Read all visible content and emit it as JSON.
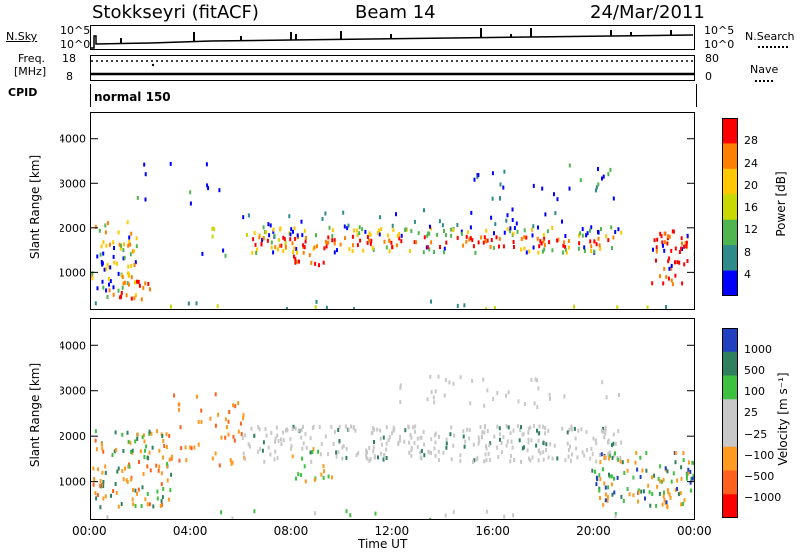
{
  "header": {
    "station": "Stokkseyri (fitACF)",
    "beam": "Beam 14",
    "date": "24/Mar/2011"
  },
  "strip_labels": {
    "nsky": "N.Sky",
    "nsky_top": "10^5",
    "nsky_bottom": "10^0",
    "nsearch": "N.Search",
    "nsearch_top": "10^5",
    "nsearch_bottom": "10^0",
    "freq_line1": "Freq.",
    "freq_line2": "[MHz]",
    "freq_top": "18",
    "freq_bottom": "8",
    "nave": "Nave",
    "nave_top": "80",
    "nave_bottom": "0",
    "cpid": "CPID",
    "cpid_value": "normal 150"
  },
  "chart_data": [
    {
      "type": "heatmap",
      "title": "",
      "ylabel": "Slant Range [km]",
      "ylim": [
        200,
        4600
      ],
      "yticks": [
        "1000",
        "2000",
        "3000",
        "4000"
      ],
      "colorbar_label": "Power [dB]",
      "colorbar_ticks": [
        "28",
        "24",
        "20",
        "16",
        "12",
        "8",
        "4"
      ],
      "colors": [
        "#ff0000",
        "#ff8000",
        "#ffc800",
        "#c8d800",
        "#50b450",
        "#2f8a8a",
        "#0000ff"
      ]
    },
    {
      "type": "heatmap",
      "title": "",
      "ylabel": "Slant Range [km]",
      "ylim": [
        200,
        4600
      ],
      "yticks": [
        "1000",
        "2000",
        "3000",
        "4000"
      ],
      "colorbar_label": "Velocity [m s⁻¹]",
      "colorbar_ticks": [
        "1000",
        "500",
        "100",
        "25",
        "−25",
        "−100",
        "−500",
        "−1000"
      ],
      "colors": [
        "#2040c0",
        "#308060",
        "#40c040",
        "#c8c8c8",
        "#c8c8c8",
        "#ff9a20",
        "#ff6020",
        "#ff0000"
      ]
    }
  ],
  "xaxis": {
    "label": "Time UT",
    "ticks": [
      "00:00",
      "04:00",
      "08:00",
      "12:00",
      "16:00",
      "20:00",
      "00:00"
    ]
  }
}
